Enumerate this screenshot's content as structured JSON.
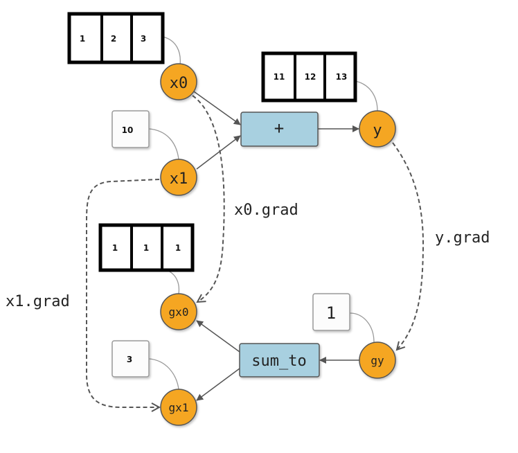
{
  "arrays": {
    "x0": [
      "1",
      "2",
      "3"
    ],
    "y": [
      "11",
      "12",
      "13"
    ],
    "gx0": [
      "1",
      "1",
      "1"
    ]
  },
  "scalars": {
    "x1": "10",
    "gy": "1",
    "gx1": "3"
  },
  "nodes": {
    "x0": "x0",
    "x1": "x1",
    "y": "y",
    "gx0": "gx0",
    "gx1": "gx1",
    "gy": "gy"
  },
  "ops": {
    "add": "+",
    "sum_to": "sum_to"
  },
  "labels": {
    "x0_grad": "x0.grad",
    "x1_grad": "x1.grad",
    "y_grad": "y.grad"
  },
  "colors": {
    "node_fill": "#f5a623",
    "op_fill": "#a8d0e0",
    "edge": "#555555"
  }
}
